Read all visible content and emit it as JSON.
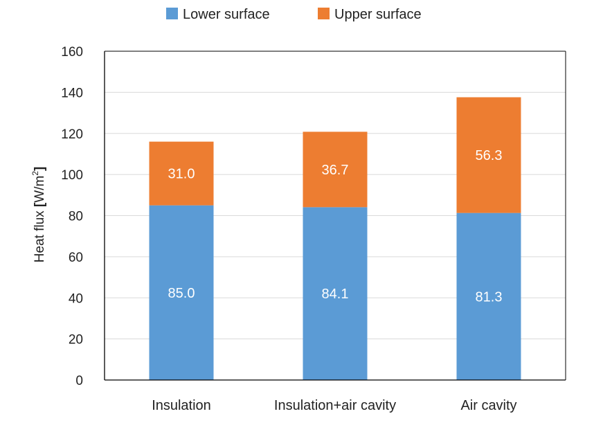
{
  "chart_data": {
    "type": "bar",
    "stacked": true,
    "categories": [
      "Insulation",
      "Insulation+air cavity",
      "Air cavity"
    ],
    "series": [
      {
        "name": "Lower surface",
        "values": [
          85.0,
          84.1,
          81.3
        ],
        "labels": [
          "85.0",
          "84.1",
          "81.3"
        ],
        "color": "#5B9BD5"
      },
      {
        "name": "Upper surface",
        "values": [
          31.0,
          36.7,
          56.3
        ],
        "labels": [
          "31.0",
          "36.7",
          "56.3"
        ],
        "color": "#ED7D31"
      }
    ],
    "ylabel_main": "Heat flux ",
    "ylabel_bracket_open": "[",
    "ylabel_unit": "W/m",
    "ylabel_sup": "2",
    "ylabel_bracket_close": "]",
    "ylim": [
      0,
      160
    ],
    "yticks": [
      "0",
      "20",
      "40",
      "60",
      "80",
      "100",
      "120",
      "140",
      "160"
    ],
    "ytick_values": [
      0,
      20,
      40,
      60,
      80,
      100,
      120,
      140,
      160
    ],
    "grid": true,
    "legend_position": "top"
  }
}
